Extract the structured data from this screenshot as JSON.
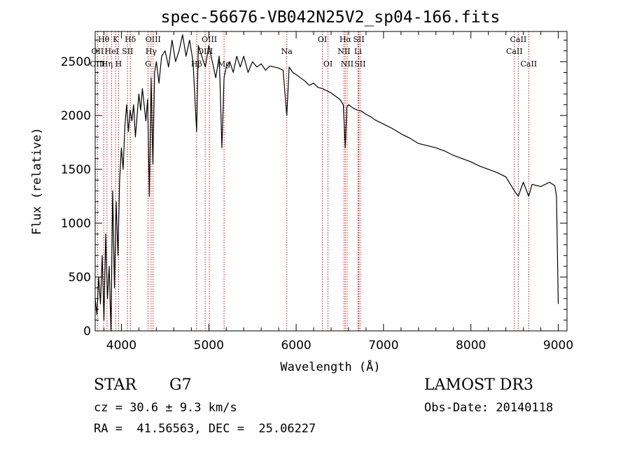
{
  "chart_data": {
    "type": "line",
    "title": "spec-56676-VB042N25V2_sp04-166.fits",
    "xlabel": "Wavelength (Å)",
    "ylabel": "Flux (relative)",
    "xlim": [
      3700,
      9100
    ],
    "ylim": [
      0,
      2780
    ],
    "xticks": [
      4000,
      5000,
      6000,
      7000,
      8000,
      9000
    ],
    "yticks": [
      0,
      500,
      1000,
      1500,
      2000,
      2500
    ],
    "grid": false,
    "series": [
      {
        "name": "flux",
        "x": [
          3700,
          3720,
          3740,
          3760,
          3780,
          3800,
          3820,
          3840,
          3860,
          3880,
          3900,
          3920,
          3940,
          3960,
          3980,
          4000,
          4020,
          4040,
          4060,
          4080,
          4100,
          4120,
          4140,
          4160,
          4180,
          4200,
          4220,
          4240,
          4260,
          4280,
          4300,
          4320,
          4340,
          4360,
          4380,
          4400,
          4430,
          4460,
          4500,
          4540,
          4580,
          4620,
          4660,
          4700,
          4740,
          4780,
          4820,
          4861,
          4880,
          4920,
          4960,
          5000,
          5040,
          5080,
          5120,
          5150,
          5175,
          5200,
          5240,
          5280,
          5320,
          5360,
          5400,
          5450,
          5500,
          5550,
          5600,
          5650,
          5700,
          5750,
          5800,
          5850,
          5893,
          5920,
          5960,
          6000,
          6050,
          6100,
          6150,
          6200,
          6250,
          6300,
          6350,
          6400,
          6450,
          6500,
          6540,
          6563,
          6580,
          6600,
          6650,
          6700,
          6750,
          6800,
          6850,
          6900,
          6950,
          7000,
          7100,
          7200,
          7300,
          7400,
          7500,
          7600,
          7700,
          7800,
          7900,
          8000,
          8100,
          8200,
          8300,
          8400,
          8498,
          8542,
          8600,
          8662,
          8700,
          8800,
          8900,
          8960,
          8980,
          9000
        ],
        "values": [
          300,
          150,
          500,
          250,
          700,
          100,
          900,
          300,
          600,
          0,
          1300,
          400,
          1200,
          700,
          1400,
          1700,
          1500,
          1900,
          2100,
          1850,
          2050,
          1950,
          2100,
          1800,
          2000,
          2200,
          2050,
          2250,
          2100,
          1950,
          2150,
          1250,
          2350,
          1550,
          2400,
          2500,
          2300,
          2550,
          2600,
          2450,
          2700,
          2500,
          2600,
          2750,
          2550,
          2700,
          2500,
          1850,
          2650,
          2550,
          2450,
          2650,
          2500,
          2350,
          2550,
          1700,
          2350,
          2450,
          2500,
          2400,
          2550,
          2450,
          2550,
          2400,
          2500,
          2450,
          2480,
          2420,
          2460,
          2450,
          2440,
          2420,
          2000,
          2450,
          2400,
          2380,
          2350,
          2320,
          2280,
          2300,
          2260,
          2250,
          2230,
          2210,
          2180,
          2150,
          2100,
          1700,
          2080,
          2100,
          2070,
          2050,
          2040,
          2010,
          1990,
          1960,
          1940,
          1920,
          1880,
          1830,
          1790,
          1740,
          1720,
          1700,
          1670,
          1630,
          1600,
          1570,
          1530,
          1500,
          1470,
          1430,
          1300,
          1250,
          1380,
          1250,
          1360,
          1340,
          1380,
          1350,
          1250,
          250
        ]
      }
    ],
    "line_labels": [
      {
        "label": "Hθ",
        "x": 3798,
        "row": 0
      },
      {
        "label": "OII",
        "x": 3727,
        "row": 1
      },
      {
        "label": "Hη",
        "x": 3835,
        "row": 2
      },
      {
        "label": "OIII",
        "x": 3727,
        "row": 2
      },
      {
        "label": "HeI",
        "x": 3889,
        "row": 1
      },
      {
        "label": "K",
        "x": 3934,
        "row": 0
      },
      {
        "label": "H",
        "x": 3968,
        "row": 2
      },
      {
        "label": "SII",
        "x": 4070,
        "row": 1
      },
      {
        "label": "Hδ",
        "x": 4102,
        "row": 0
      },
      {
        "label": "OIII",
        "x": 4363,
        "row": 0
      },
      {
        "label": "Hγ",
        "x": 4340,
        "row": 1
      },
      {
        "label": "G",
        "x": 4305,
        "row": 2
      },
      {
        "label": "Hβ",
        "x": 4861,
        "row": 2
      },
      {
        "label": "OIII",
        "x": 4959,
        "row": 1
      },
      {
        "label": "OIII",
        "x": 5007,
        "row": 0
      },
      {
        "label": "Mg",
        "x": 5175,
        "row": 2
      },
      {
        "label": "Na",
        "x": 5893,
        "row": 1
      },
      {
        "label": "OI",
        "x": 6300,
        "row": 0
      },
      {
        "label": "OI",
        "x": 6364,
        "row": 2
      },
      {
        "label": "Hα",
        "x": 6563,
        "row": 0
      },
      {
        "label": "NII",
        "x": 6548,
        "row": 1
      },
      {
        "label": "NII",
        "x": 6584,
        "row": 2
      },
      {
        "label": "SII",
        "x": 6717,
        "row": 0
      },
      {
        "label": "Li",
        "x": 6708,
        "row": 1
      },
      {
        "label": "SII",
        "x": 6731,
        "row": 2
      },
      {
        "label": "CaII",
        "x": 8542,
        "row": 0
      },
      {
        "label": "CaII",
        "x": 8498,
        "row": 1
      },
      {
        "label": "CaII",
        "x": 8662,
        "row": 2
      }
    ],
    "line_positions": [
      3727,
      3798,
      3835,
      3889,
      3934,
      3968,
      4070,
      4102,
      4305,
      4340,
      4363,
      4861,
      4959,
      5007,
      5175,
      5893,
      6300,
      6364,
      6548,
      6563,
      6584,
      6708,
      6717,
      6731,
      8498,
      8542,
      8662
    ],
    "colors": {
      "axis": "#000000",
      "line": "#000000",
      "marker_line": "#cc0000"
    }
  },
  "info": {
    "object": "STAR",
    "subclass": "G7",
    "survey": "LAMOST DR3",
    "cz": "cz = 30.6 ± 9.3 km/s",
    "obs_date": "Obs-Date: 20140118",
    "coords": "RA =  41.56563, DEC =  25.06227"
  }
}
